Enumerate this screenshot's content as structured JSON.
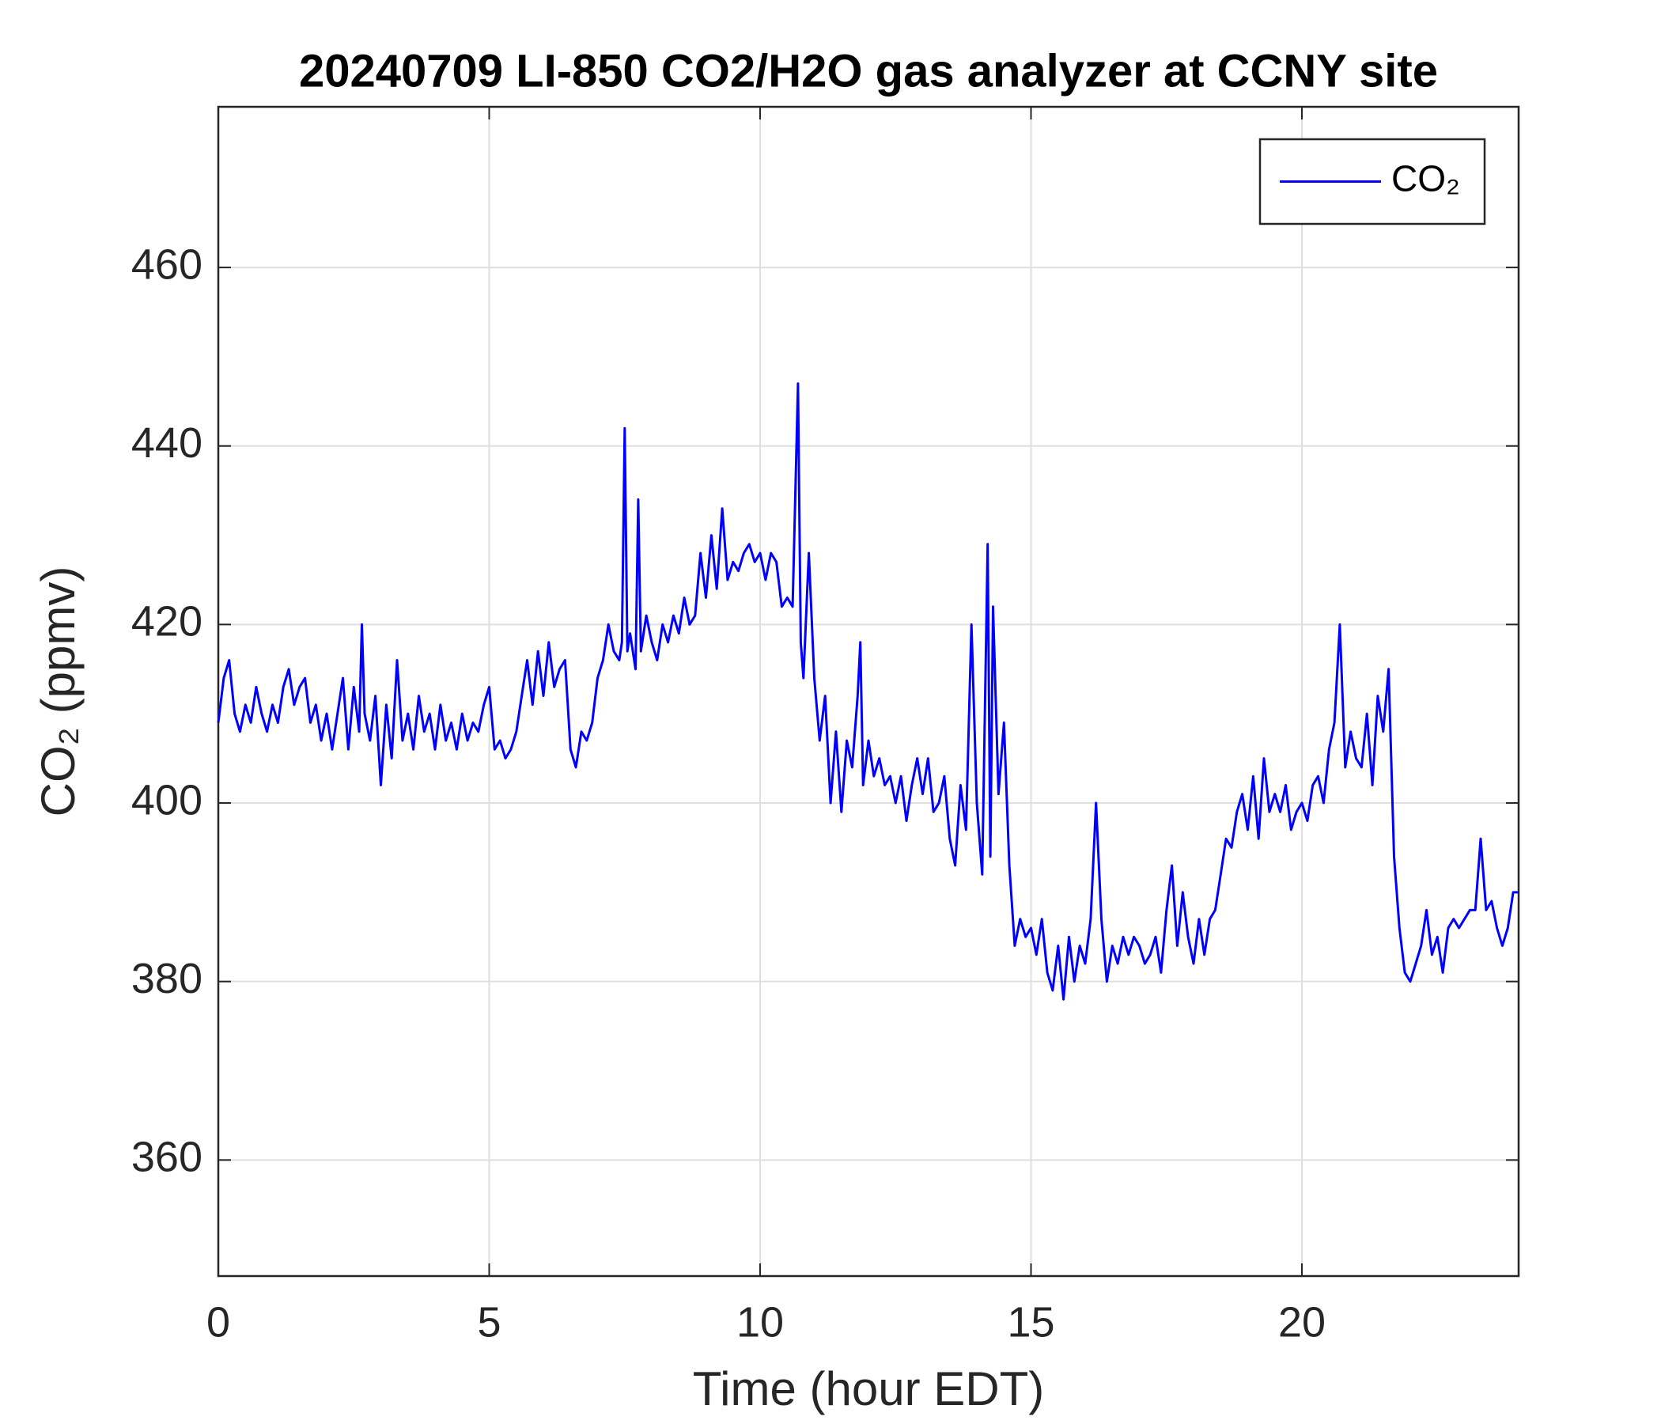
{
  "chart_data": {
    "type": "line",
    "title": "20240709 LI-850 CO2/H2O gas analyzer at CCNY site",
    "x_label": "Time (hour EDT)",
    "y_label": "CO₂ (ppmv)",
    "xlim": [
      0,
      24
    ],
    "ylim": [
      347,
      478
    ],
    "xticks": [
      0,
      5,
      10,
      15,
      20
    ],
    "yticks": [
      360,
      380,
      400,
      420,
      440,
      460
    ],
    "grid": true,
    "legend": "top-right",
    "x": [
      0,
      0.1,
      0.2,
      0.3,
      0.4,
      0.5,
      0.6,
      0.7,
      0.8,
      0.9,
      1.0,
      1.1,
      1.2,
      1.3,
      1.4,
      1.5,
      1.6,
      1.7,
      1.8,
      1.9,
      2.0,
      2.1,
      2.2,
      2.3,
      2.4,
      2.5,
      2.6,
      2.65,
      2.7,
      2.8,
      2.9,
      3.0,
      3.1,
      3.2,
      3.3,
      3.4,
      3.5,
      3.6,
      3.7,
      3.8,
      3.9,
      4.0,
      4.1,
      4.2,
      4.3,
      4.4,
      4.5,
      4.6,
      4.7,
      4.8,
      4.9,
      5.0,
      5.1,
      5.2,
      5.3,
      5.4,
      5.5,
      5.6,
      5.7,
      5.8,
      5.9,
      6.0,
      6.1,
      6.2,
      6.3,
      6.4,
      6.5,
      6.6,
      6.7,
      6.8,
      6.9,
      7.0,
      7.1,
      7.2,
      7.3,
      7.4,
      7.45,
      7.5,
      7.55,
      7.6,
      7.7,
      7.75,
      7.8,
      7.9,
      8.0,
      8.1,
      8.2,
      8.3,
      8.4,
      8.5,
      8.6,
      8.7,
      8.8,
      8.9,
      9.0,
      9.1,
      9.2,
      9.3,
      9.4,
      9.5,
      9.6,
      9.7,
      9.8,
      9.9,
      10.0,
      10.1,
      10.2,
      10.3,
      10.4,
      10.5,
      10.6,
      10.7,
      10.75,
      10.8,
      10.9,
      11.0,
      11.1,
      11.2,
      11.3,
      11.4,
      11.5,
      11.6,
      11.7,
      11.8,
      11.85,
      11.9,
      12.0,
      12.1,
      12.2,
      12.3,
      12.4,
      12.5,
      12.6,
      12.7,
      12.8,
      12.9,
      13.0,
      13.1,
      13.2,
      13.3,
      13.4,
      13.5,
      13.6,
      13.7,
      13.8,
      13.9,
      14.0,
      14.1,
      14.2,
      14.25,
      14.3,
      14.4,
      14.5,
      14.6,
      14.7,
      14.8,
      14.9,
      15.0,
      15.1,
      15.2,
      15.3,
      15.4,
      15.5,
      15.6,
      15.7,
      15.8,
      15.9,
      16.0,
      16.1,
      16.2,
      16.3,
      16.4,
      16.5,
      16.6,
      16.7,
      16.8,
      16.9,
      17.0,
      17.1,
      17.2,
      17.3,
      17.4,
      17.5,
      17.6,
      17.7,
      17.8,
      17.9,
      18.0,
      18.1,
      18.2,
      18.3,
      18.4,
      18.5,
      18.6,
      18.7,
      18.8,
      18.9,
      19.0,
      19.1,
      19.2,
      19.3,
      19.4,
      19.5,
      19.6,
      19.7,
      19.8,
      19.9,
      20.0,
      20.1,
      20.2,
      20.3,
      20.4,
      20.5,
      20.6,
      20.7,
      20.8,
      20.9,
      21.0,
      21.1,
      21.2,
      21.3,
      21.4,
      21.5,
      21.6,
      21.7,
      21.8,
      21.9,
      22.0,
      22.1,
      22.2,
      22.3,
      22.4,
      22.5,
      22.6,
      22.7,
      22.8,
      22.9,
      23.0,
      23.1,
      23.2,
      23.3,
      23.4,
      23.5,
      23.6,
      23.7,
      23.8,
      23.9,
      24.0
    ],
    "series": [
      {
        "name": "CO₂",
        "color": "#0000ff",
        "values": [
          409,
          414,
          416,
          410,
          408,
          411,
          409,
          413,
          410,
          408,
          411,
          409,
          413,
          415,
          411,
          413,
          414,
          409,
          411,
          407,
          410,
          406,
          410,
          414,
          406,
          413,
          408,
          420,
          410,
          407,
          412,
          402,
          411,
          405,
          416,
          407,
          410,
          406,
          412,
          408,
          410,
          406,
          411,
          407,
          409,
          406,
          410,
          407,
          409,
          408,
          411,
          413,
          406,
          407,
          405,
          406,
          408,
          412,
          416,
          411,
          417,
          412,
          418,
          413,
          415,
          416,
          406,
          404,
          408,
          407,
          409,
          414,
          416,
          420,
          417,
          416,
          418,
          442,
          417,
          419,
          415,
          434,
          417,
          421,
          418,
          416,
          420,
          418,
          421,
          419,
          423,
          420,
          421,
          428,
          423,
          430,
          424,
          433,
          425,
          427,
          426,
          428,
          429,
          427,
          428,
          425,
          428,
          427,
          422,
          423,
          422,
          447,
          418,
          414,
          428,
          414,
          407,
          412,
          400,
          408,
          399,
          407,
          404,
          412,
          418,
          402,
          407,
          403,
          405,
          402,
          403,
          400,
          403,
          398,
          402,
          405,
          401,
          405,
          399,
          400,
          403,
          396,
          393,
          402,
          397,
          420,
          400,
          392,
          429,
          394,
          422,
          401,
          409,
          393,
          384,
          387,
          385,
          386,
          383,
          387,
          381,
          379,
          384,
          378,
          385,
          380,
          384,
          382,
          387,
          400,
          387,
          380,
          384,
          382,
          385,
          383,
          385,
          384,
          382,
          383,
          385,
          381,
          388,
          393,
          384,
          390,
          385,
          382,
          387,
          383,
          387,
          388,
          392,
          396,
          395,
          399,
          401,
          397,
          403,
          396,
          405,
          399,
          401,
          399,
          402,
          397,
          399,
          400,
          398,
          402,
          403,
          400,
          406,
          409,
          420,
          404,
          408,
          405,
          404,
          410,
          402,
          412,
          408,
          415,
          394,
          386,
          381,
          380,
          382,
          384,
          388,
          383,
          385,
          381,
          386,
          387,
          386,
          387,
          388,
          388,
          396,
          388,
          389,
          386,
          384,
          386,
          390,
          390
        ]
      }
    ]
  }
}
